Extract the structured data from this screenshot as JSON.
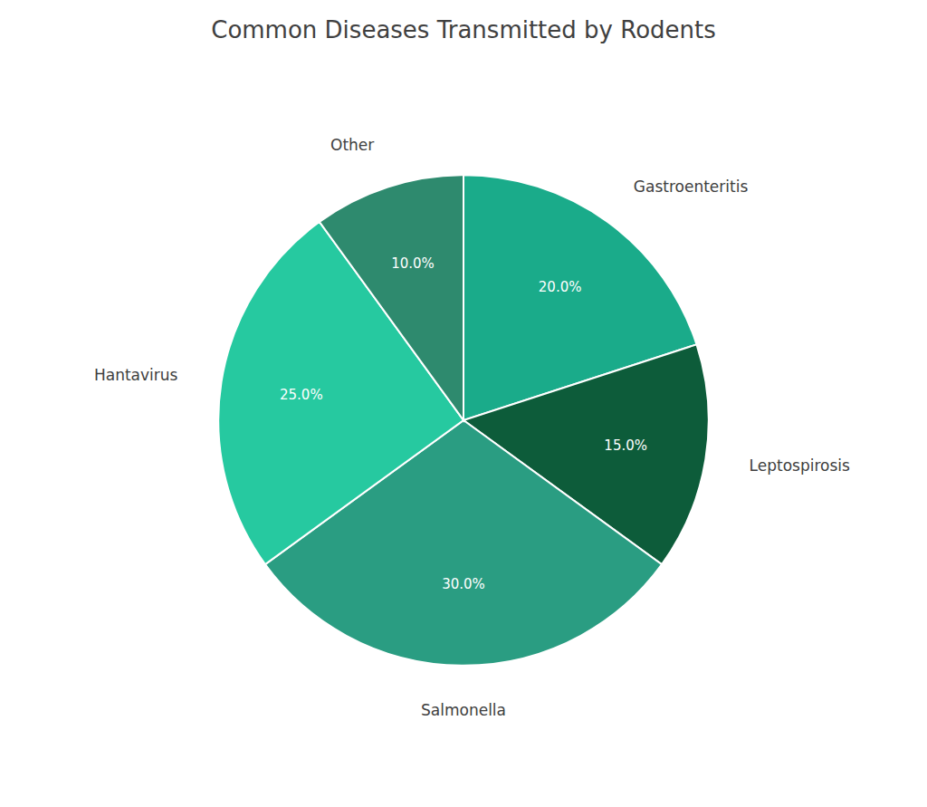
{
  "chart_data": {
    "type": "pie",
    "title": "Common Diseases Transmitted by Rodents",
    "categories": [
      "Gastroenteritis",
      "Leptospirosis",
      "Salmonella",
      "Hantavirus",
      "Other"
    ],
    "values": [
      20.0,
      15.0,
      30.0,
      25.0,
      10.0
    ],
    "value_labels": [
      "20.0%",
      "15.0%",
      "30.0%",
      "25.0%",
      "10.0%"
    ],
    "colors": [
      "#1aab8a",
      "#0d5c3a",
      "#2a9d82",
      "#26c9a0",
      "#2e8a6e"
    ],
    "data_labels": true
  }
}
